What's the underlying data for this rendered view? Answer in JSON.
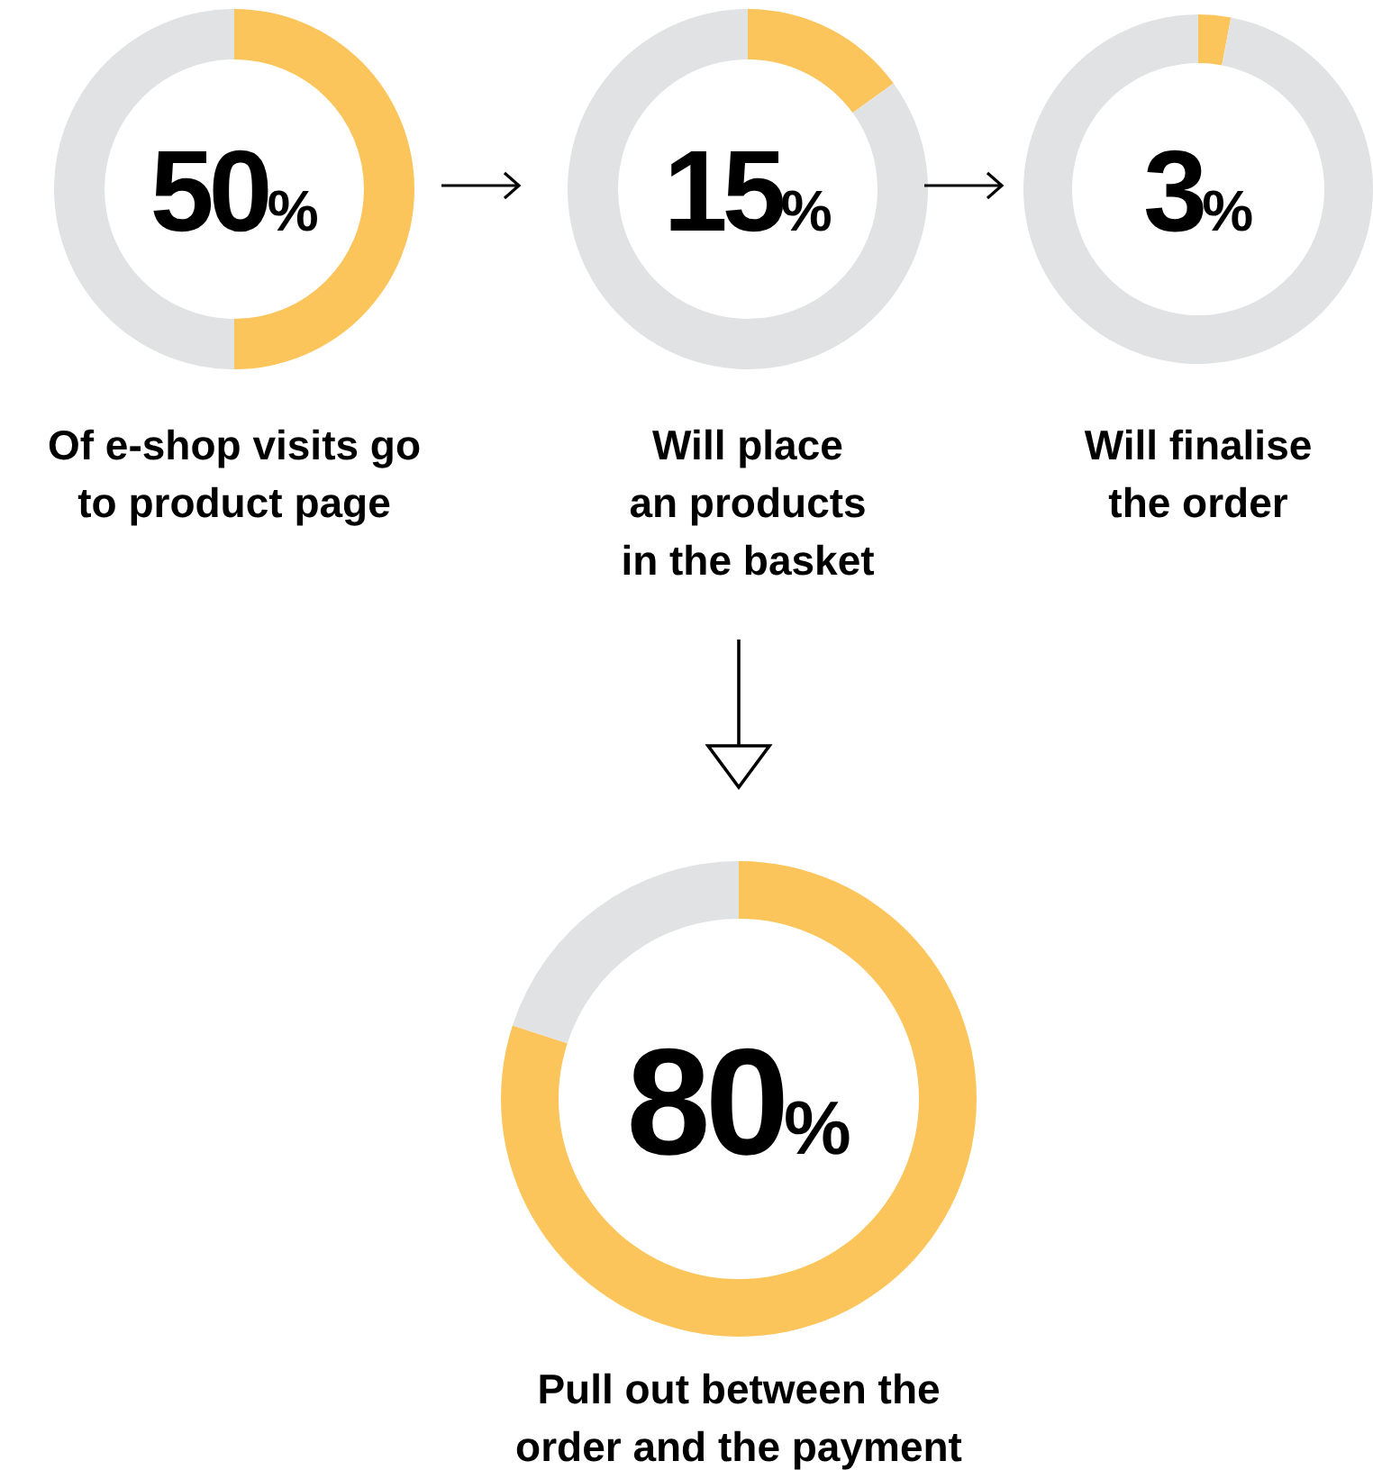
{
  "chart_data": [
    {
      "type": "donut",
      "title": "Of e-shop visits go\nto product page",
      "categories": [
        null,
        null
      ],
      "values": [
        50,
        50
      ],
      "colors": [
        "#fcc55c",
        "#e1e2e4"
      ],
      "annotations": [
        "50%"
      ]
    },
    {
      "type": "donut",
      "title": "Will place\nan products\nin the basket",
      "categories": [
        null,
        null
      ],
      "values": [
        15,
        85
      ],
      "colors": [
        "#fcc55c",
        "#e1e2e4"
      ],
      "annotations": [
        "15%"
      ]
    },
    {
      "type": "donut",
      "title": "Will finalise\nthe order",
      "categories": [
        null,
        null
      ],
      "values": [
        3,
        97
      ],
      "colors": [
        "#fcc55c",
        "#e1e2e4"
      ],
      "annotations": [
        "3%"
      ]
    },
    {
      "type": "donut",
      "title": "Pull out between the\norder and the payment",
      "categories": [
        null,
        null
      ],
      "values": [
        80,
        20
      ],
      "colors": [
        "#fcc55c",
        "#e1e2e4"
      ],
      "annotations": [
        "80%"
      ]
    }
  ]
}
